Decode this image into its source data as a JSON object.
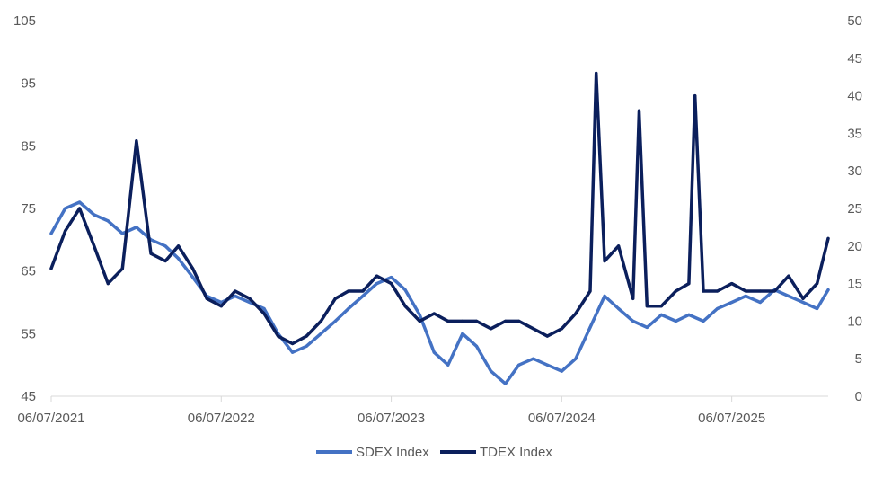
{
  "chart_data": {
    "type": "line",
    "title": "",
    "xlabel": "",
    "ylabel": "",
    "x_tick_labels": [
      "06/07/2021",
      "06/07/2022",
      "06/07/2023",
      "06/07/2024",
      "06/07/2025"
    ],
    "x_range": [
      "06/07/2021",
      "12/31/2025"
    ],
    "y_left": {
      "ylim": [
        45,
        105
      ],
      "ticks": [
        45,
        55,
        65,
        75,
        85,
        95,
        105
      ]
    },
    "y_right": {
      "ylim": [
        0,
        50
      ],
      "ticks": [
        0,
        5,
        10,
        15,
        20,
        25,
        30,
        35,
        40,
        45,
        50
      ]
    },
    "grid": false,
    "legend_position": "bottom",
    "series": [
      {
        "name": "SDEX Index",
        "axis": "left",
        "color": "#4472C4",
        "x": [
          "06/07/2021",
          "07/07/2021",
          "08/07/2021",
          "09/07/2021",
          "10/07/2021",
          "11/07/2021",
          "12/07/2021",
          "01/07/2022",
          "02/07/2022",
          "03/07/2022",
          "04/07/2022",
          "05/07/2022",
          "06/07/2022",
          "07/07/2022",
          "08/07/2022",
          "09/07/2022",
          "10/07/2022",
          "11/07/2022",
          "12/07/2022",
          "01/07/2023",
          "02/07/2023",
          "03/07/2023",
          "04/07/2023",
          "05/07/2023",
          "06/07/2023",
          "07/07/2023",
          "08/07/2023",
          "09/07/2023",
          "10/07/2023",
          "11/07/2023",
          "12/07/2023",
          "01/07/2024",
          "02/07/2024",
          "03/07/2024",
          "04/07/2024",
          "05/07/2024",
          "06/07/2024",
          "07/07/2024",
          "08/07/2024",
          "09/07/2024",
          "10/07/2024",
          "11/07/2024",
          "12/07/2024",
          "01/07/2025",
          "02/07/2025",
          "03/07/2025",
          "04/07/2025",
          "05/07/2025",
          "06/07/2025",
          "07/07/2025",
          "08/07/2025",
          "09/07/2025",
          "10/07/2025",
          "11/07/2025",
          "12/07/2025",
          "12/31/2025"
        ],
        "values": [
          71,
          75,
          76,
          74,
          73,
          71,
          72,
          70,
          69,
          67,
          64,
          61,
          60,
          61,
          60,
          59,
          55,
          52,
          53,
          55,
          57,
          59,
          61,
          63,
          64,
          62,
          58,
          52,
          50,
          55,
          53,
          49,
          47,
          50,
          51,
          50,
          49,
          51,
          56,
          61,
          59,
          57,
          56,
          58,
          57,
          58,
          57,
          59,
          60,
          61,
          60,
          62,
          61,
          60,
          59,
          62
        ]
      },
      {
        "name": "TDEX Index",
        "axis": "right",
        "color": "#0B1F5C",
        "x": [
          "06/07/2021",
          "07/07/2021",
          "08/07/2021",
          "09/07/2021",
          "10/07/2021",
          "11/07/2021",
          "12/07/2021",
          "01/07/2022",
          "02/07/2022",
          "03/07/2022",
          "04/07/2022",
          "05/07/2022",
          "06/07/2022",
          "07/07/2022",
          "08/07/2022",
          "09/07/2022",
          "10/07/2022",
          "11/07/2022",
          "12/07/2022",
          "01/07/2023",
          "02/07/2023",
          "03/07/2023",
          "04/07/2023",
          "05/07/2023",
          "06/07/2023",
          "07/07/2023",
          "08/07/2023",
          "09/07/2023",
          "10/07/2023",
          "11/07/2023",
          "12/07/2023",
          "01/07/2024",
          "02/07/2024",
          "03/07/2024",
          "04/07/2024",
          "05/07/2024",
          "06/07/2024",
          "07/07/2024",
          "08/07/2024",
          "08/20/2024",
          "09/07/2024",
          "10/07/2024",
          "11/07/2024",
          "11/20/2024",
          "12/07/2024",
          "01/07/2025",
          "02/07/2025",
          "03/07/2025",
          "03/20/2025",
          "04/07/2025",
          "05/07/2025",
          "06/07/2025",
          "07/07/2025",
          "08/07/2025",
          "09/07/2025",
          "10/07/2025",
          "11/07/2025",
          "12/07/2025",
          "12/31/2025"
        ],
        "values": [
          17,
          22,
          25,
          20,
          15,
          17,
          34,
          19,
          18,
          20,
          17,
          13,
          12,
          14,
          13,
          11,
          8,
          7,
          8,
          10,
          13,
          14,
          14,
          16,
          15,
          12,
          10,
          11,
          10,
          10,
          10,
          9,
          10,
          10,
          9,
          8,
          9,
          11,
          14,
          43,
          18,
          20,
          13,
          38,
          12,
          12,
          14,
          15,
          40,
          14,
          14,
          15,
          14,
          14,
          14,
          16,
          13,
          15,
          21
        ]
      }
    ]
  }
}
